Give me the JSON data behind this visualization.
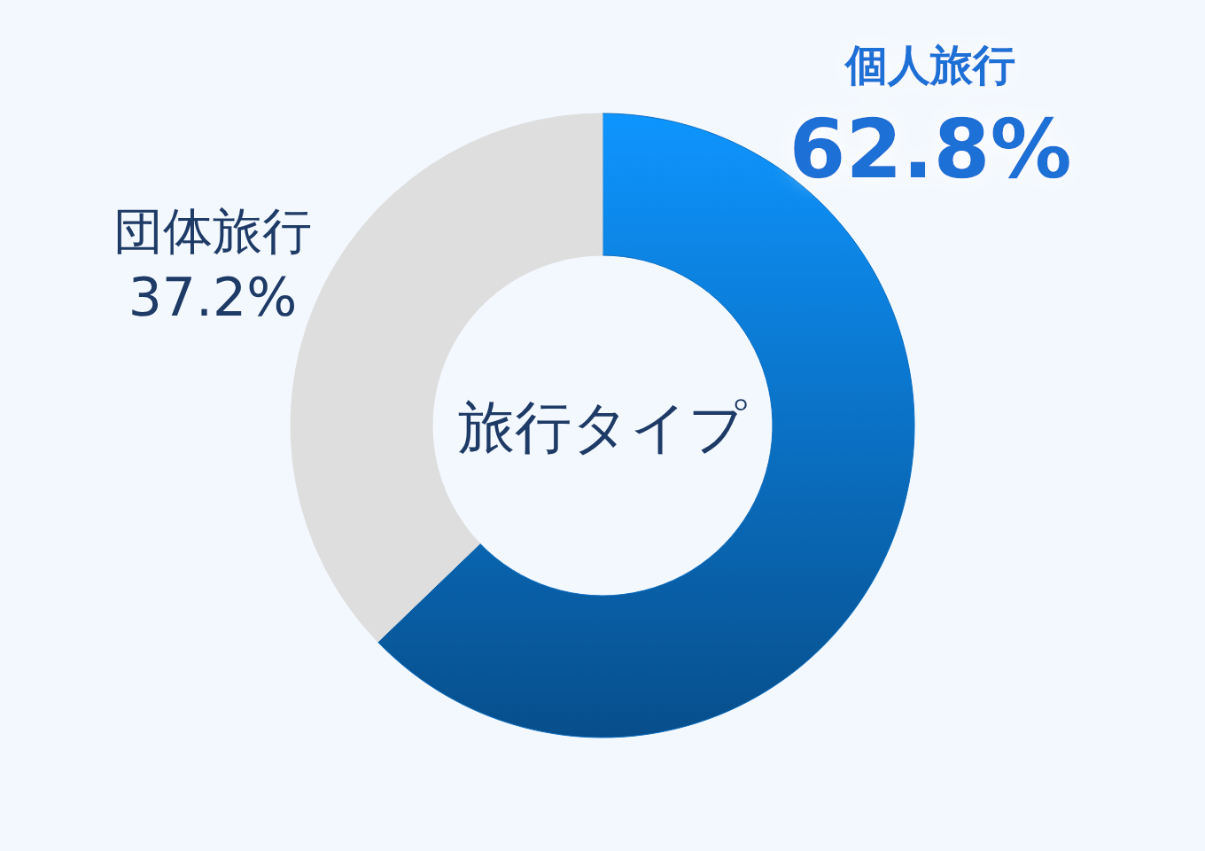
{
  "chart_data": {
    "type": "donut",
    "title": "旅行タイプ",
    "categories": [
      "個人旅行",
      "団体旅行"
    ],
    "values": [
      62.8,
      37.2
    ],
    "colors": [
      "#0a6cc0",
      "#dedede"
    ],
    "value_labels": [
      "62.8%",
      "37.2%"
    ]
  }
}
